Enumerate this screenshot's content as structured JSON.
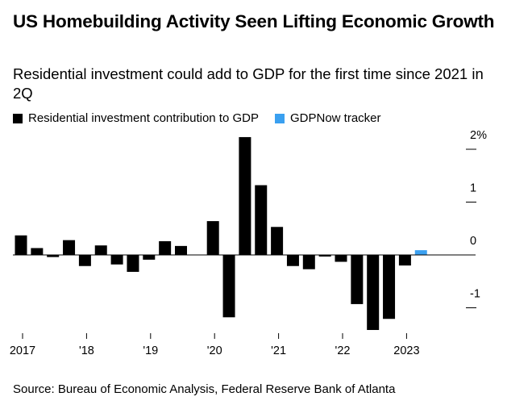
{
  "header": {
    "title": "US Homebuilding Activity Seen Lifting Economic Growth",
    "subtitle": "Residential investment could add to GDP for the first time since 2021 in 2Q"
  },
  "footer": {
    "source": "Source: Bureau of Economic Analysis, Federal Reserve Bank of Atlanta"
  },
  "colors": {
    "residential": "#000000",
    "gdpnow": "#3aa0f0",
    "axis": "#000000"
  },
  "chart_data": {
    "type": "bar",
    "title": "US Homebuilding Activity Seen Lifting Economic Growth",
    "subtitle": "Residential investment could add to GDP for the first time since 2021 in 2Q",
    "ylim": [
      -1.45,
      2.25
    ],
    "y_ticks": [
      2,
      1,
      0,
      -1
    ],
    "y_tick_labels": [
      "2%",
      "1",
      "0",
      "-1"
    ],
    "y_axis_position": "right",
    "grid": false,
    "legend_position": "top-left",
    "x_tick_labels": [
      {
        "label": "2017",
        "index": 0
      },
      {
        "label": "'18",
        "index": 4
      },
      {
        "label": "'19",
        "index": 8
      },
      {
        "label": "'20",
        "index": 12
      },
      {
        "label": "'21",
        "index": 16
      },
      {
        "label": "'22",
        "index": 20
      },
      {
        "label": "2023",
        "index": 24
      }
    ],
    "series": [
      {
        "name": "Residential investment contribution to GDP",
        "values": [
          0.37,
          0.13,
          -0.04,
          0.28,
          -0.21,
          0.18,
          -0.18,
          -0.32,
          -0.09,
          0.26,
          0.17,
          0.0,
          0.64,
          -1.18,
          2.23,
          1.32,
          0.53,
          -0.21,
          -0.27,
          -0.03,
          -0.13,
          -0.93,
          -1.42,
          -1.21,
          -0.2
        ]
      },
      {
        "name": "GDPNow tracker",
        "index": 25,
        "value": 0.09
      }
    ],
    "n_slots": 27
  }
}
